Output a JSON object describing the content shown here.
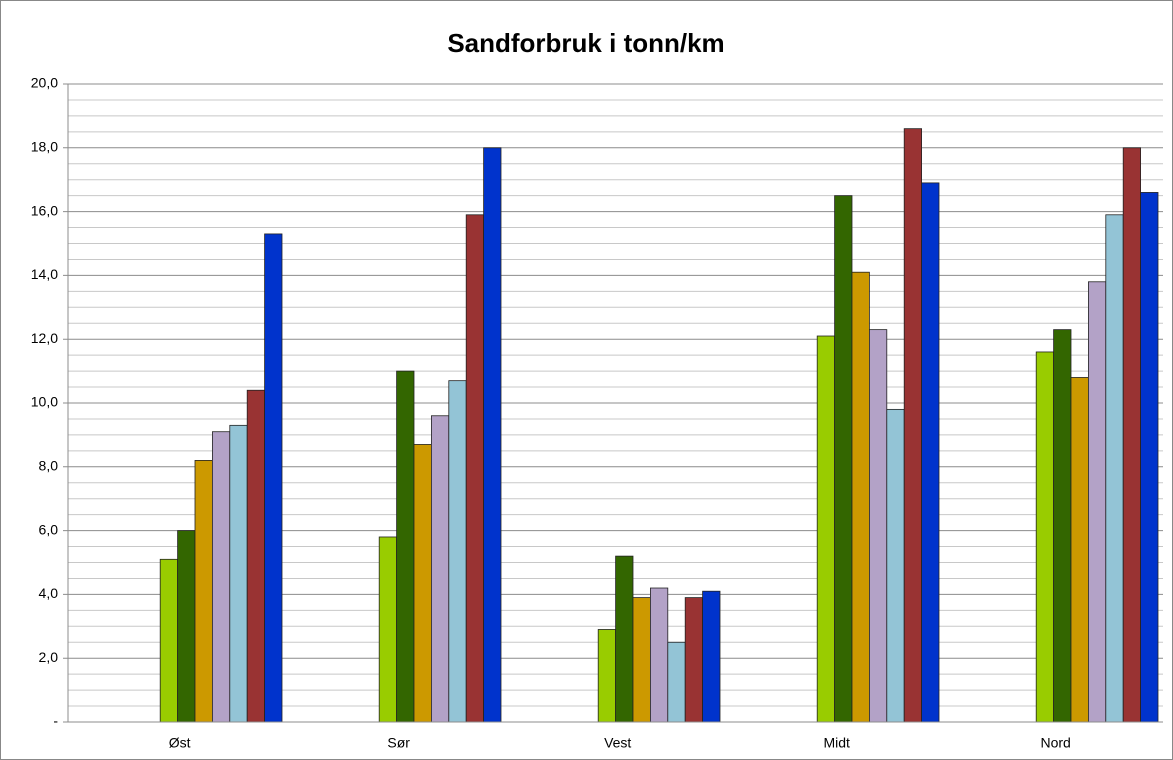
{
  "chart_data": {
    "type": "bar",
    "title": "Sandforbruk i tonn/km",
    "categories": [
      "Øst",
      "Sør",
      "Vest",
      "Midt",
      "Nord"
    ],
    "series": [
      {
        "color": "#99cc00",
        "values": [
          5.1,
          5.8,
          2.9,
          12.1,
          11.6
        ]
      },
      {
        "color": "#336600",
        "values": [
          6.0,
          11.0,
          5.2,
          16.5,
          12.3
        ]
      },
      {
        "color": "#cc9900",
        "values": [
          8.2,
          8.7,
          3.9,
          14.1,
          10.8
        ]
      },
      {
        "color": "#b3a2c7",
        "values": [
          9.1,
          9.6,
          4.2,
          12.3,
          13.8
        ]
      },
      {
        "color": "#93c4d6",
        "values": [
          9.3,
          10.7,
          2.5,
          9.8,
          15.9
        ]
      },
      {
        "color": "#993333",
        "values": [
          10.4,
          15.9,
          3.9,
          18.6,
          18.0
        ]
      },
      {
        "color": "#0033cc",
        "values": [
          15.3,
          18.0,
          4.1,
          16.9,
          16.6
        ]
      }
    ],
    "ylim": [
      0,
      20
    ],
    "yticks": [
      {
        "value": 0,
        "label": "-"
      },
      {
        "value": 2,
        "label": "2,0"
      },
      {
        "value": 4,
        "label": "4,0"
      },
      {
        "value": 6,
        "label": "6,0"
      },
      {
        "value": 8,
        "label": "8,0"
      },
      {
        "value": 10,
        "label": "10,0"
      },
      {
        "value": 12,
        "label": "12,0"
      },
      {
        "value": 14,
        "label": "14,0"
      },
      {
        "value": 16,
        "label": "16,0"
      },
      {
        "value": 18,
        "label": "18,0"
      },
      {
        "value": 20,
        "label": "20,0"
      }
    ],
    "minor_yticks": [
      0.5,
      1,
      1.5,
      2.5,
      3,
      3.5,
      4.5,
      5,
      5.5,
      6.5,
      7,
      7.5,
      8.5,
      9,
      9.5,
      10.5,
      11,
      11.5,
      12.5,
      13,
      13.5,
      14.5,
      15,
      15.5,
      16.5,
      17,
      17.5,
      18.5,
      19,
      19.5
    ],
    "grid": true
  }
}
